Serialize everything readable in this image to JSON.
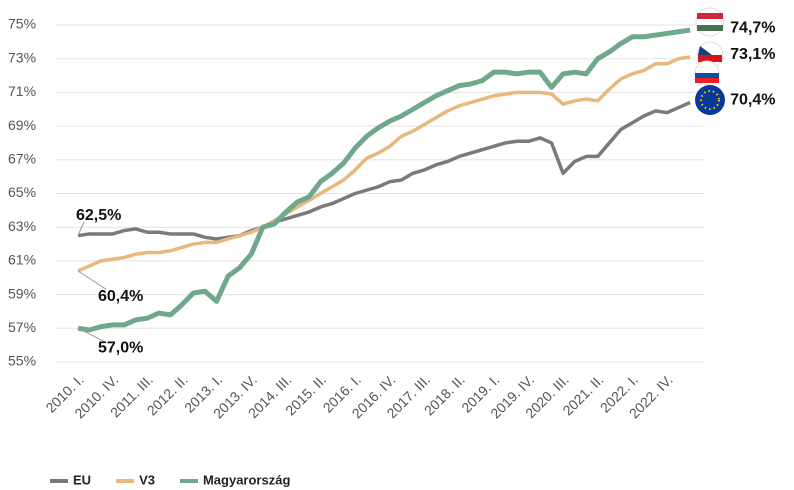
{
  "chart_data": {
    "type": "line",
    "categories": [
      "2010. I.",
      null,
      null,
      "2010. IV.",
      null,
      null,
      "2011. III.",
      null,
      null,
      "2012. II.",
      null,
      null,
      "2013. I.",
      null,
      null,
      "2013. IV.",
      null,
      null,
      "2014. III.",
      null,
      null,
      "2015. II.",
      null,
      null,
      "2016. I.",
      null,
      null,
      "2016. IV.",
      null,
      null,
      "2017. III.",
      null,
      null,
      "2018. II.",
      null,
      null,
      "2019. I.",
      null,
      null,
      "2019. IV.",
      null,
      null,
      "2020. III.",
      null,
      null,
      "2021. II.",
      null,
      null,
      "2022. I.",
      null,
      null,
      "2022. IV.",
      null,
      null
    ],
    "series": [
      {
        "name": "EU",
        "color": "#7a7a7a",
        "values": [
          62.5,
          62.6,
          62.6,
          62.6,
          62.8,
          62.9,
          62.7,
          62.7,
          62.6,
          62.6,
          62.6,
          62.4,
          62.3,
          62.4,
          62.5,
          62.8,
          63.0,
          63.3,
          63.5,
          63.7,
          63.9,
          64.2,
          64.4,
          64.7,
          65.0,
          65.2,
          65.4,
          65.7,
          65.8,
          66.2,
          66.4,
          66.7,
          66.9,
          67.2,
          67.4,
          67.6,
          67.8,
          68.0,
          68.1,
          68.1,
          68.3,
          68.0,
          66.2,
          66.9,
          67.2,
          67.2,
          68.0,
          68.8,
          69.2,
          69.6,
          69.9,
          69.8,
          70.1,
          70.4
        ],
        "value_labels": [
          "62,5%",
          null,
          null,
          null,
          null,
          null,
          null,
          null,
          null,
          null,
          null,
          null,
          null,
          null,
          null,
          null,
          null,
          null,
          null,
          null,
          null,
          null,
          null,
          null,
          null,
          null,
          null,
          null,
          null,
          null,
          null,
          null,
          null,
          null,
          null,
          null,
          null,
          null,
          null,
          null,
          null,
          null,
          null,
          null,
          null,
          null,
          null,
          null,
          null,
          null,
          null,
          null,
          null,
          "70,4%"
        ]
      },
      {
        "name": "V3",
        "color": "#e8b87e",
        "values": [
          60.4,
          60.7,
          61.0,
          61.1,
          61.2,
          61.4,
          61.5,
          61.5,
          61.6,
          61.8,
          62.0,
          62.1,
          62.1,
          62.3,
          62.5,
          62.7,
          63.0,
          63.4,
          63.8,
          64.2,
          64.6,
          65.0,
          65.4,
          65.8,
          66.4,
          67.1,
          67.4,
          67.8,
          68.4,
          68.7,
          69.1,
          69.5,
          69.9,
          70.2,
          70.4,
          70.6,
          70.8,
          70.9,
          71.0,
          71.0,
          71.0,
          70.9,
          70.3,
          70.5,
          70.6,
          70.5,
          71.2,
          71.8,
          72.1,
          72.3,
          72.7,
          72.7,
          73.0,
          73.1
        ],
        "value_labels": [
          "60,4%",
          null,
          null,
          null,
          null,
          null,
          null,
          null,
          null,
          null,
          null,
          null,
          null,
          null,
          null,
          null,
          null,
          null,
          null,
          null,
          null,
          null,
          null,
          null,
          null,
          null,
          null,
          null,
          null,
          null,
          null,
          null,
          null,
          null,
          null,
          null,
          null,
          null,
          null,
          null,
          null,
          null,
          null,
          null,
          null,
          null,
          null,
          null,
          null,
          null,
          null,
          null,
          null,
          "73,1%"
        ]
      },
      {
        "name": "Magyarország",
        "color": "#6fa88c",
        "values": [
          57.0,
          56.9,
          57.1,
          57.2,
          57.2,
          57.5,
          57.6,
          57.9,
          57.8,
          58.4,
          59.1,
          59.2,
          58.6,
          60.1,
          60.6,
          61.4,
          63.0,
          63.2,
          63.9,
          64.5,
          64.8,
          65.7,
          66.2,
          66.8,
          67.7,
          68.4,
          68.9,
          69.3,
          69.6,
          70.0,
          70.4,
          70.8,
          71.1,
          71.4,
          71.5,
          71.7,
          72.2,
          72.2,
          72.1,
          72.2,
          72.2,
          71.3,
          72.1,
          72.2,
          72.1,
          73.0,
          73.4,
          73.9,
          74.3,
          74.3,
          74.4,
          74.5,
          74.6,
          74.7
        ],
        "value_labels": [
          "57,0%",
          null,
          null,
          null,
          null,
          null,
          null,
          null,
          null,
          null,
          null,
          null,
          null,
          null,
          null,
          null,
          null,
          null,
          null,
          null,
          null,
          null,
          null,
          null,
          null,
          null,
          null,
          null,
          null,
          null,
          null,
          null,
          null,
          null,
          null,
          null,
          null,
          null,
          null,
          null,
          null,
          null,
          null,
          null,
          null,
          null,
          null,
          null,
          null,
          null,
          null,
          null,
          null,
          "74,7%"
        ]
      }
    ],
    "ylim": [
      55,
      75
    ],
    "yticks": [
      {
        "value": 55,
        "label": "55%"
      },
      {
        "value": 57,
        "label": "57%"
      },
      {
        "value": 59,
        "label": "59%"
      },
      {
        "value": 61,
        "label": "61%"
      },
      {
        "value": 63,
        "label": "63%"
      },
      {
        "value": 65,
        "label": "65%"
      },
      {
        "value": 67,
        "label": "67%"
      },
      {
        "value": 69,
        "label": "69%"
      },
      {
        "value": 71,
        "label": "71%"
      },
      {
        "value": 73,
        "label": "73%"
      },
      {
        "value": 75,
        "label": "75%"
      }
    ],
    "grid": true,
    "legend": "bottom-left"
  }
}
